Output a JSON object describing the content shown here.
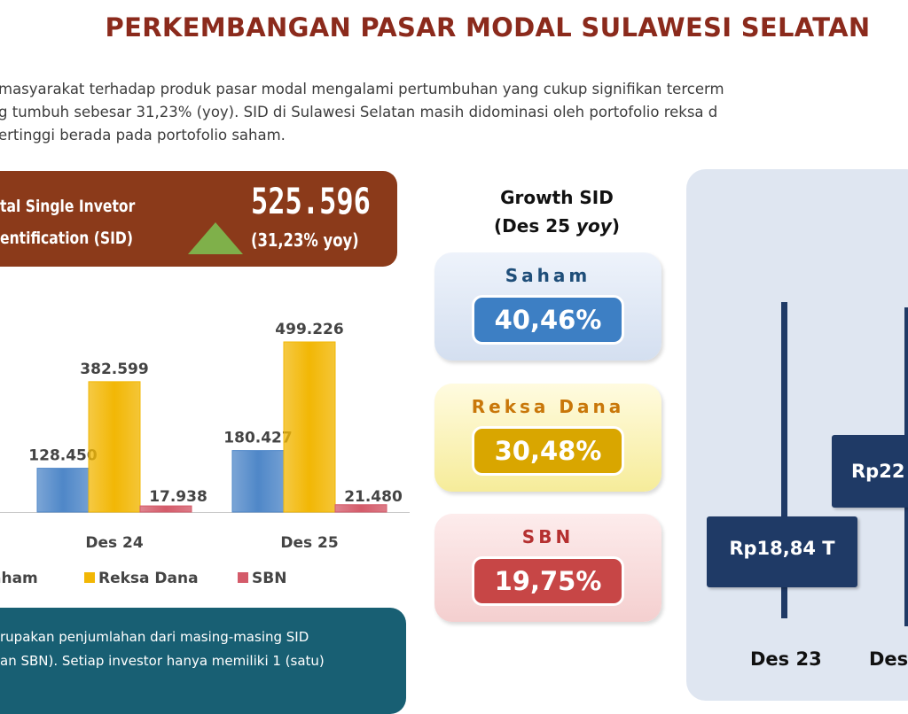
{
  "title": "PERKEMBANGAN PASAR MODAL SULAWESI SELATAN",
  "paragraph": {
    "line1": "masyarakat terhadap produk pasar modal mengalami pertumbuhan yang cukup signifikan tercerm",
    "line2": "g tumbuh sebesar 31,23% (yoy). SID di Sulawesi Selatan masih didominasi oleh portofolio reksa d",
    "line3": "ertinggi berada pada portofolio saham."
  },
  "sid_box": {
    "label_line1": "tal Single Invetor",
    "label_line2": "entification (SID)",
    "value": "525.596",
    "growth": "(31,23% yoy)"
  },
  "chart_data": [
    {
      "type": "bar",
      "categories": [
        "Des 24",
        "Des 25"
      ],
      "series": [
        {
          "name": "Saham",
          "values": [
            128450,
            180427
          ],
          "labels": [
            "128.450",
            "180.427"
          ],
          "color": "#4f87c8"
        },
        {
          "name": "Reksa Dana",
          "values": [
            382599,
            499226
          ],
          "labels": [
            "382.599",
            "499.226"
          ],
          "color": "#f2b705"
        },
        {
          "name": "SBN",
          "values": [
            17938,
            21480
          ],
          "labels": [
            "17.938",
            "21.480"
          ],
          "color": "#d45b6a"
        }
      ],
      "legend_labels": [
        "aham",
        "Reksa Dana",
        "SBN"
      ],
      "legend": "bottom",
      "clipped_label": "1",
      "ylim": [
        0,
        520000
      ],
      "grid": false
    }
  ],
  "growth": {
    "heading_line1": "Growth SID",
    "heading_line2_a": "(Des 25 ",
    "heading_line2_b": "yoy",
    "heading_line2_c": ")",
    "cards": [
      {
        "name": "Saham",
        "value": "40,46%"
      },
      {
        "name": "Reksa Dana",
        "value": "30,48%"
      },
      {
        "name": "SBN",
        "value": "19,75%"
      }
    ]
  },
  "right_panel": {
    "box1": "Rp18,84 T",
    "box2": "Rp22",
    "x_label1": "Des 23",
    "x_label2": "Des"
  },
  "note": {
    "line1": "rupakan penjumlahan dari masing-masing SID",
    "line2": "an SBN). Setiap investor hanya memiliki 1 (satu)"
  }
}
